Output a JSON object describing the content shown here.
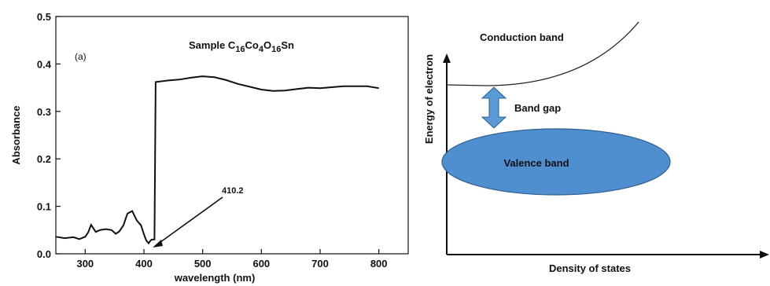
{
  "chart_data": [
    {
      "type": "line",
      "panel_label": "(a)",
      "title": {
        "prefix": "Sample C",
        "parts": [
          {
            "text": "16",
            "sub": true
          },
          {
            "text": "Co",
            "sub": false
          },
          {
            "text": "4",
            "sub": true
          },
          {
            "text": "O",
            "sub": false
          },
          {
            "text": "16",
            "sub": true
          },
          {
            "text": "Sn",
            "sub": false
          }
        ]
      },
      "xlabel": "wavelength (nm)",
      "ylabel": "Absorbance",
      "xlim": [
        250,
        850
      ],
      "ylim": [
        0.0,
        0.5
      ],
      "xticks": [
        300,
        400,
        500,
        600,
        700,
        800
      ],
      "yticks": [
        0.0,
        0.1,
        0.2,
        0.3,
        0.4,
        0.5
      ],
      "ytick_labels": [
        "0.0",
        "0.1",
        "0.2",
        "0.3",
        "0.4",
        "0.5"
      ],
      "grid": false,
      "series": [
        {
          "x": [
            250,
            265,
            280,
            290,
            300,
            305,
            310,
            318,
            325,
            335,
            345,
            352,
            358,
            365,
            372,
            380,
            388,
            395,
            400,
            404,
            408,
            410,
            413,
            418,
            420,
            440,
            460,
            480,
            500,
            520,
            540,
            560,
            580,
            600,
            620,
            640,
            660,
            680,
            700,
            720,
            740,
            760,
            780,
            800
          ],
          "y": [
            0.036,
            0.033,
            0.035,
            0.031,
            0.036,
            0.045,
            0.061,
            0.046,
            0.05,
            0.052,
            0.05,
            0.042,
            0.047,
            0.06,
            0.085,
            0.09,
            0.07,
            0.06,
            0.041,
            0.028,
            0.022,
            0.026,
            0.03,
            0.03,
            0.362,
            0.365,
            0.367,
            0.371,
            0.374,
            0.372,
            0.366,
            0.358,
            0.352,
            0.346,
            0.343,
            0.344,
            0.347,
            0.35,
            0.349,
            0.351,
            0.353,
            0.353,
            0.353,
            0.349
          ]
        }
      ],
      "annotations": [
        {
          "text": "410.2",
          "x": 410.2,
          "y": 0.022
        }
      ]
    },
    {
      "type": "diagram",
      "ylabel": "Energy of electron",
      "xlabel": "Density of states",
      "labels": {
        "conduction": "Conduction band",
        "gap": "Band gap",
        "valence": "Valence band"
      },
      "colors": {
        "valence_fill": "#4f8fd0",
        "arrow_fill": "#5b9bd5",
        "outline": "#2f5f90"
      }
    }
  ]
}
